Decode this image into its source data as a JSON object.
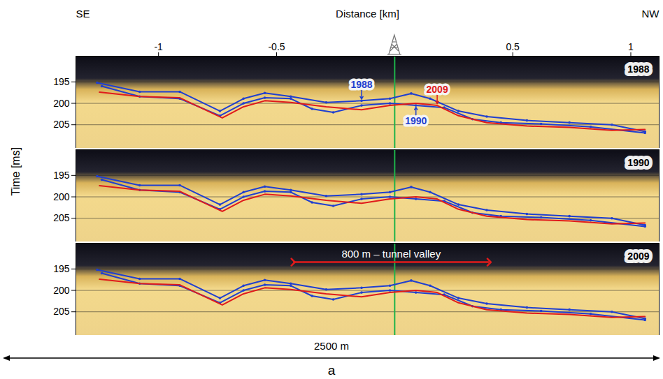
{
  "chart_data": {
    "type": "line",
    "x_label": "Distance [km]",
    "y_label": "Time [ms]",
    "direction_labels": [
      "SE",
      "NW"
    ],
    "xlim": [
      -1.35,
      1.12
    ],
    "xticks": [
      -1,
      -0.5,
      0.5,
      1
    ],
    "ylim": [
      210.5,
      189
    ],
    "yticks": [
      195,
      200,
      205
    ],
    "grid": true,
    "well_x": 0,
    "series": [
      {
        "name": "1988",
        "color": "#1f3fd0",
        "marker": "dot",
        "x": [
          -1.26,
          -1.08,
          -0.91,
          -0.74,
          -0.64,
          -0.55,
          -0.44,
          -0.29,
          -0.14,
          -0.02,
          0.07,
          0.15,
          0.27,
          0.39,
          0.56,
          0.74,
          0.92,
          1.06
        ],
        "values": [
          195.2,
          197.3,
          197.3,
          201.8,
          198.9,
          197.6,
          198.4,
          199.8,
          199.4,
          198.9,
          197.7,
          198.9,
          201.8,
          203.1,
          204,
          204.5,
          205,
          206.6
        ]
      },
      {
        "name": "1990",
        "color": "#1f3fd0",
        "marker": "dot",
        "x": [
          -1.24,
          -1.08,
          -0.91,
          -0.74,
          -0.64,
          -0.55,
          -0.44,
          -0.35,
          -0.26,
          -0.14,
          -0.02,
          0.09,
          0.21,
          0.33,
          0.45,
          0.62,
          0.83,
          1.06
        ],
        "values": [
          196,
          198.4,
          198.9,
          202.9,
          200,
          198.7,
          198.9,
          201.3,
          202.1,
          200.5,
          200,
          200.5,
          201,
          203.7,
          204.5,
          204.8,
          205.5,
          206.9
        ]
      },
      {
        "name": "2009",
        "color": "#e01b1b",
        "x": [
          -1.25,
          -1.08,
          -0.91,
          -0.73,
          -0.64,
          -0.55,
          -0.44,
          -0.29,
          -0.14,
          -0.02,
          0.09,
          0.18,
          0.27,
          0.39,
          0.56,
          0.74,
          0.92,
          1.06
        ],
        "values": [
          197.4,
          198.4,
          198.7,
          203.4,
          200.8,
          199.4,
          199.8,
          200.8,
          201.5,
          200.5,
          200,
          200.5,
          202.9,
          204.5,
          205.3,
          205.6,
          206.3,
          206.1
        ]
      }
    ],
    "panels": [
      {
        "title": "1988",
        "annotations": [
          {
            "text": "1988",
            "series": "1988",
            "x": -0.14
          },
          {
            "text": "2009",
            "series": "2009",
            "x": 0.18
          },
          {
            "text": "1990",
            "series": "1990",
            "x": 0.09
          }
        ]
      },
      {
        "title": "1990"
      },
      {
        "title": "2009",
        "annotations": [
          {
            "text": "800 m – tunnel valley",
            "x": [
              -0.43,
              0.4
            ],
            "y": 193.4
          }
        ]
      }
    ],
    "scale_bar": "2500 m",
    "panel_letter": "a"
  }
}
